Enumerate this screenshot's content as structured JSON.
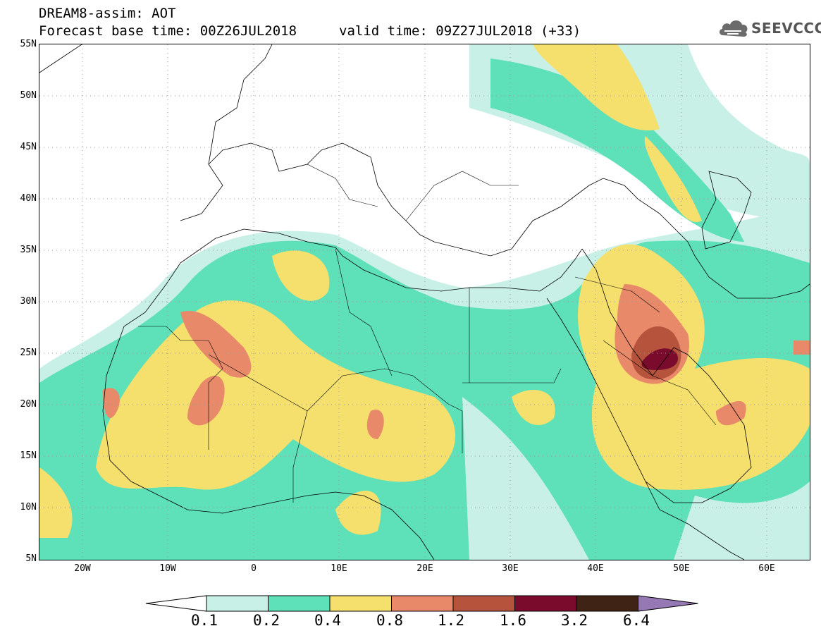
{
  "header": {
    "title": "DREAM8-assim: AOT",
    "forecast_base": "Forecast base time: 00Z26JUL2018",
    "valid_time": "valid time: 09Z27JUL2018 (+33)"
  },
  "logo": {
    "text": "SEEVCCC",
    "icon": "cloud-icon"
  },
  "map": {
    "lat_labels": [
      "55N",
      "50N",
      "45N",
      "40N",
      "35N",
      "30N",
      "25N",
      "20N",
      "15N",
      "10N",
      "5N"
    ],
    "lon_labels": [
      "20W",
      "10W",
      "0",
      "10E",
      "20E",
      "30E",
      "40E",
      "50E",
      "60E"
    ],
    "lon_range": [
      -25,
      65
    ],
    "lat_range": [
      5,
      55
    ],
    "grid": "dotted"
  },
  "colorbar": {
    "labels": [
      "0.1",
      "0.2",
      "0.4",
      "0.8",
      "1.2",
      "1.6",
      "3.2",
      "6.4"
    ],
    "colors": [
      "#ffffff",
      "#c8f0e6",
      "#5ee0b8",
      "#f5e06e",
      "#e8896a",
      "#b5533c",
      "#7a0b2c",
      "#3f2314",
      "#9678b4"
    ]
  }
}
